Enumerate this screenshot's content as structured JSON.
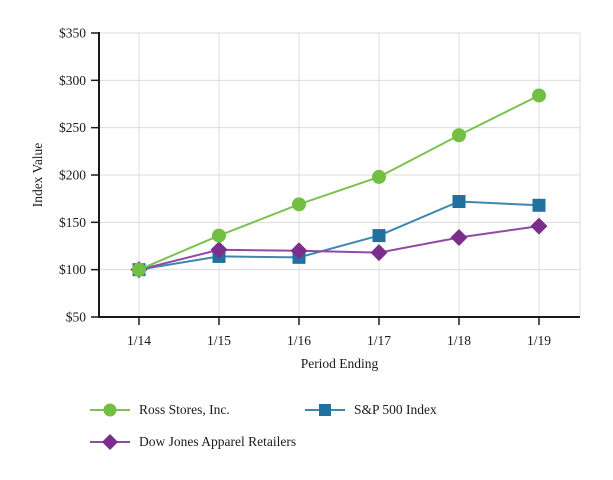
{
  "chart_data": {
    "type": "line",
    "xlabel": "Period Ending",
    "ylabel": "Index Value",
    "x": [
      "1/14",
      "1/15",
      "1/16",
      "1/17",
      "1/18",
      "1/19"
    ],
    "ylim": [
      50,
      350
    ],
    "y_ticks": [
      {
        "label": "$50",
        "value": 50
      },
      {
        "label": "$100",
        "value": 100
      },
      {
        "label": "$150",
        "value": 150
      },
      {
        "label": "$200",
        "value": 200
      },
      {
        "label": "$250",
        "value": 250
      },
      {
        "label": "$300",
        "value": 300
      },
      {
        "label": "$350",
        "value": 350
      }
    ],
    "grid": true,
    "legend_position": "bottom",
    "series": [
      {
        "name": "Ross Stores, Inc.",
        "marker": "circle",
        "color": "#72BF44",
        "line_color": "#7CC24E",
        "values": [
          100,
          136,
          169,
          198,
          242,
          284
        ]
      },
      {
        "name": "S&P 500 Index",
        "marker": "square",
        "color": "#20719E",
        "line_color": "#3F87AF",
        "values": [
          100,
          114,
          113,
          136,
          172,
          168
        ]
      },
      {
        "name": "Dow Jones Apparel Retailers",
        "marker": "diamond",
        "color": "#7B2E8C",
        "line_color": "#9348A6",
        "values": [
          100,
          121,
          120,
          118,
          134,
          146
        ]
      }
    ]
  },
  "colors": {
    "axis": "#1a1a1a",
    "gridline": "#dcdcdc",
    "text": "#1a1a1a",
    "background": "#ffffff"
  }
}
